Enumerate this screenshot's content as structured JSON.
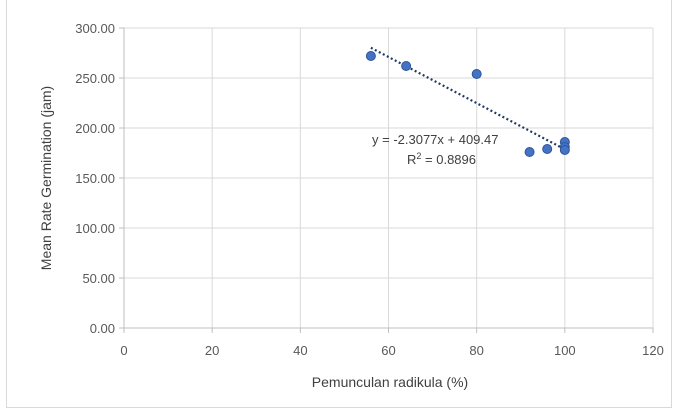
{
  "chart_data": {
    "type": "scatter",
    "xlabel": "Pemunculan radikula (%)",
    "ylabel": "Mean Rate Germination (jam)",
    "xlim": [
      0,
      120
    ],
    "ylim": [
      0,
      300
    ],
    "x_ticks": [
      "0",
      "20",
      "40",
      "60",
      "80",
      "100",
      "120"
    ],
    "y_ticks": [
      "0.00",
      "50.00",
      "100.00",
      "150.00",
      "200.00",
      "250.00",
      "300.00"
    ],
    "grid": true,
    "legend": "none",
    "series": [
      {
        "points": [
          {
            "x": 56,
            "y": 272
          },
          {
            "x": 64,
            "y": 262
          },
          {
            "x": 80,
            "y": 254
          },
          {
            "x": 92,
            "y": 176
          },
          {
            "x": 96,
            "y": 179
          },
          {
            "x": 100,
            "y": 186
          },
          {
            "x": 100,
            "y": 181
          },
          {
            "x": 100,
            "y": 178
          }
        ],
        "marker_color": "#4472c4"
      }
    ],
    "trendline": {
      "type": "linear",
      "slope": -2.3077,
      "intercept": 409.47,
      "x_range": [
        56,
        100
      ],
      "equation": "y = -2.3077x + 409.47",
      "r2_prefix": "R",
      "r2_sup": "2",
      "r2_value": " = 0.8896",
      "color": "#1f3864"
    }
  }
}
